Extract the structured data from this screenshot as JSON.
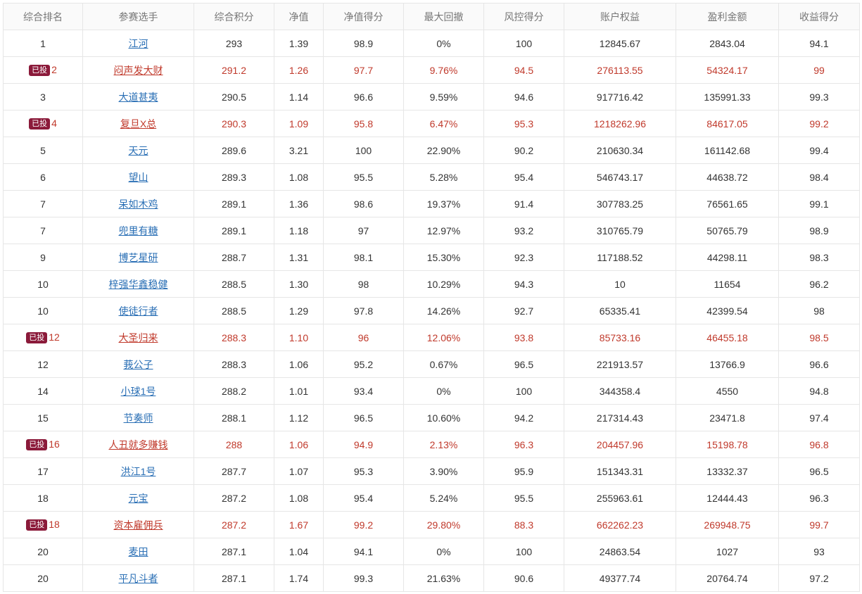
{
  "table": {
    "headers": [
      "综合排名",
      "参赛选手",
      "综合积分",
      "净值",
      "净值得分",
      "最大回撤",
      "风控得分",
      "账户权益",
      "盈利金额",
      "收益得分"
    ],
    "badge_label": "已投",
    "rows": [
      {
        "rank": "1",
        "badge": "",
        "highlight": false,
        "player": "江河",
        "score": "293",
        "nav": "1.39",
        "nav_score": "98.9",
        "max_drawdown": "0%",
        "risk_score": "100",
        "equity": "12845.67",
        "profit": "2843.04",
        "return_score": "94.1"
      },
      {
        "rank": "2",
        "badge": "已投",
        "highlight": true,
        "player": "闷声发大财",
        "score": "291.2",
        "nav": "1.26",
        "nav_score": "97.7",
        "max_drawdown": "9.76%",
        "risk_score": "94.5",
        "equity": "276113.55",
        "profit": "54324.17",
        "return_score": "99"
      },
      {
        "rank": "3",
        "badge": "",
        "highlight": false,
        "player": "大道甚夷",
        "score": "290.5",
        "nav": "1.14",
        "nav_score": "96.6",
        "max_drawdown": "9.59%",
        "risk_score": "94.6",
        "equity": "917716.42",
        "profit": "135991.33",
        "return_score": "99.3"
      },
      {
        "rank": "4",
        "badge": "已投",
        "highlight": true,
        "player": "复旦X总",
        "score": "290.3",
        "nav": "1.09",
        "nav_score": "95.8",
        "max_drawdown": "6.47%",
        "risk_score": "95.3",
        "equity": "1218262.96",
        "profit": "84617.05",
        "return_score": "99.2"
      },
      {
        "rank": "5",
        "badge": "",
        "highlight": false,
        "player": "天元",
        "score": "289.6",
        "nav": "3.21",
        "nav_score": "100",
        "max_drawdown": "22.90%",
        "risk_score": "90.2",
        "equity": "210630.34",
        "profit": "161142.68",
        "return_score": "99.4"
      },
      {
        "rank": "6",
        "badge": "",
        "highlight": false,
        "player": "望山",
        "score": "289.3",
        "nav": "1.08",
        "nav_score": "95.5",
        "max_drawdown": "5.28%",
        "risk_score": "95.4",
        "equity": "546743.17",
        "profit": "44638.72",
        "return_score": "98.4"
      },
      {
        "rank": "7",
        "badge": "",
        "highlight": false,
        "player": "呆如木鸡",
        "score": "289.1",
        "nav": "1.36",
        "nav_score": "98.6",
        "max_drawdown": "19.37%",
        "risk_score": "91.4",
        "equity": "307783.25",
        "profit": "76561.65",
        "return_score": "99.1"
      },
      {
        "rank": "7",
        "badge": "",
        "highlight": false,
        "player": "兜里有糖",
        "score": "289.1",
        "nav": "1.18",
        "nav_score": "97",
        "max_drawdown": "12.97%",
        "risk_score": "93.2",
        "equity": "310765.79",
        "profit": "50765.79",
        "return_score": "98.9"
      },
      {
        "rank": "9",
        "badge": "",
        "highlight": false,
        "player": "博艺星研",
        "score": "288.7",
        "nav": "1.31",
        "nav_score": "98.1",
        "max_drawdown": "15.30%",
        "risk_score": "92.3",
        "equity": "117188.52",
        "profit": "44298.11",
        "return_score": "98.3"
      },
      {
        "rank": "10",
        "badge": "",
        "highlight": false,
        "player": "梓强华鑫稳健",
        "score": "288.5",
        "nav": "1.30",
        "nav_score": "98",
        "max_drawdown": "10.29%",
        "risk_score": "94.3",
        "equity": "10",
        "profit": "11654",
        "return_score": "96.2"
      },
      {
        "rank": "10",
        "badge": "",
        "highlight": false,
        "player": "使徒行者",
        "score": "288.5",
        "nav": "1.29",
        "nav_score": "97.8",
        "max_drawdown": "14.26%",
        "risk_score": "92.7",
        "equity": "65335.41",
        "profit": "42399.54",
        "return_score": "98"
      },
      {
        "rank": "12",
        "badge": "已投",
        "highlight": true,
        "player": "大圣归来",
        "score": "288.3",
        "nav": "1.10",
        "nav_score": "96",
        "max_drawdown": "12.06%",
        "risk_score": "93.8",
        "equity": "85733.16",
        "profit": "46455.18",
        "return_score": "98.5"
      },
      {
        "rank": "12",
        "badge": "",
        "highlight": false,
        "player": "莪公子",
        "score": "288.3",
        "nav": "1.06",
        "nav_score": "95.2",
        "max_drawdown": "0.67%",
        "risk_score": "96.5",
        "equity": "221913.57",
        "profit": "13766.9",
        "return_score": "96.6"
      },
      {
        "rank": "14",
        "badge": "",
        "highlight": false,
        "player": "小球1号",
        "score": "288.2",
        "nav": "1.01",
        "nav_score": "93.4",
        "max_drawdown": "0%",
        "risk_score": "100",
        "equity": "344358.4",
        "profit": "4550",
        "return_score": "94.8"
      },
      {
        "rank": "15",
        "badge": "",
        "highlight": false,
        "player": "节奏师",
        "score": "288.1",
        "nav": "1.12",
        "nav_score": "96.5",
        "max_drawdown": "10.60%",
        "risk_score": "94.2",
        "equity": "217314.43",
        "profit": "23471.8",
        "return_score": "97.4"
      },
      {
        "rank": "16",
        "badge": "已投",
        "highlight": true,
        "player": "人丑就多赚钱",
        "score": "288",
        "nav": "1.06",
        "nav_score": "94.9",
        "max_drawdown": "2.13%",
        "risk_score": "96.3",
        "equity": "204457.96",
        "profit": "15198.78",
        "return_score": "96.8"
      },
      {
        "rank": "17",
        "badge": "",
        "highlight": false,
        "player": "洪江1号",
        "score": "287.7",
        "nav": "1.07",
        "nav_score": "95.3",
        "max_drawdown": "3.90%",
        "risk_score": "95.9",
        "equity": "151343.31",
        "profit": "13332.37",
        "return_score": "96.5"
      },
      {
        "rank": "18",
        "badge": "",
        "highlight": false,
        "player": "元宝",
        "score": "287.2",
        "nav": "1.08",
        "nav_score": "95.4",
        "max_drawdown": "5.24%",
        "risk_score": "95.5",
        "equity": "255963.61",
        "profit": "12444.43",
        "return_score": "96.3"
      },
      {
        "rank": "18",
        "badge": "已投",
        "highlight": true,
        "player": "资本雇佣兵",
        "score": "287.2",
        "nav": "1.67",
        "nav_score": "99.2",
        "max_drawdown": "29.80%",
        "risk_score": "88.3",
        "equity": "662262.23",
        "profit": "269948.75",
        "return_score": "99.7"
      },
      {
        "rank": "20",
        "badge": "",
        "highlight": false,
        "player": "麦田",
        "score": "287.1",
        "nav": "1.04",
        "nav_score": "94.1",
        "max_drawdown": "0%",
        "risk_score": "100",
        "equity": "24863.54",
        "profit": "1027",
        "return_score": "93"
      },
      {
        "rank": "20",
        "badge": "",
        "highlight": false,
        "player": "平凡斗者",
        "score": "287.1",
        "nav": "1.74",
        "nav_score": "99.3",
        "max_drawdown": "21.63%",
        "risk_score": "90.6",
        "equity": "49377.74",
        "profit": "20764.74",
        "return_score": "97.2"
      }
    ]
  },
  "colors": {
    "highlight_text": "#c0392b",
    "link": "#2a6fb5",
    "badge_bg": "#8b1a3a",
    "border": "#e6e6e6",
    "header_bg": "#fafafa"
  }
}
